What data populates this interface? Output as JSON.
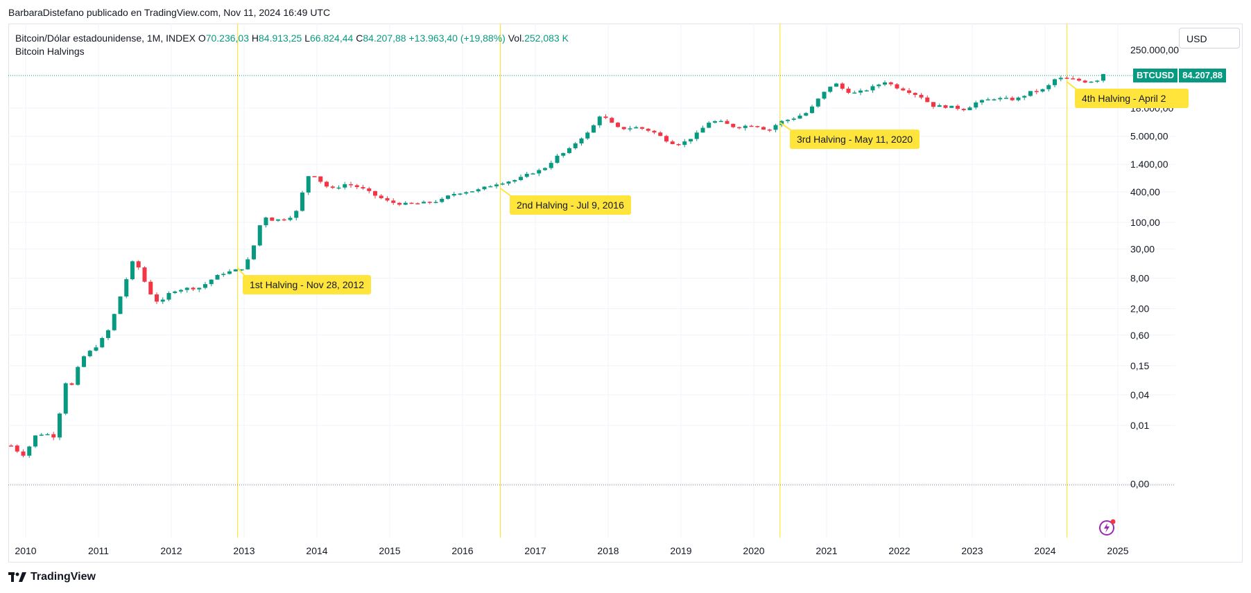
{
  "attribution": "BarbaraDistefano publicado en TradingView.com, Nov 11, 2024 16:49 UTC",
  "legend": {
    "symbol_desc": "Bitcoin/Dólar estadounidense, 1M, INDEX",
    "o_key": "O",
    "o_val": "70.236,03",
    "h_key": "H",
    "h_val": "84.913,25",
    "l_key": "L",
    "l_val": "66.824,44",
    "c_key": "C",
    "c_val": "84.207,88",
    "change": "+13.963,40 (+19,88%)",
    "vol_key": "Vol.",
    "vol_val": "252,083 K",
    "indicator": "Bitcoin Halvings"
  },
  "currency": "USD",
  "ticker": {
    "symbol": "BTCUSD",
    "price": "84.207,88"
  },
  "footer_brand": "TradingView",
  "icons": {
    "brand": "tradingview-logo-icon",
    "flash": "lightning-icon"
  },
  "colors": {
    "up": "#089981",
    "down": "#f23645",
    "halving": "#ffe53b",
    "grid": "#f0f3fa",
    "axis": "#131722"
  },
  "chart_data": {
    "type": "candlestick",
    "title": "",
    "y_scale": "log",
    "y_ticks": [
      "0,00",
      "0,01",
      "0,04",
      "0,15",
      "0,60",
      "2,00",
      "8,00",
      "30,00",
      "100,00",
      "400,00",
      "1.400,00",
      "5.000,00",
      "18.000,00"
    ],
    "y_tick_values": [
      0.0007,
      0.01,
      0.04,
      0.15,
      0.6,
      2,
      8,
      30,
      100,
      400,
      1400,
      5000,
      18000
    ],
    "x_ticks": [
      "2010",
      "2011",
      "2012",
      "2013",
      "2014",
      "2015",
      "2016",
      "2017",
      "2018",
      "2019",
      "2020",
      "2021",
      "2022",
      "2023",
      "2024",
      "2025"
    ],
    "x_range": [
      2009.78,
      2025.79
    ],
    "last_price": 84207.88,
    "low_line": 0.0025,
    "halvings": [
      {
        "date": 2012.91,
        "label": "1st Halving - Nov 28, 2012"
      },
      {
        "date": 2016.52,
        "label": "2nd Halving - Jul 9, 2016"
      },
      {
        "date": 2020.36,
        "label": "3rd Halving - May 11, 2020"
      },
      {
        "date": 2024.3,
        "label": "4th Halving - April 2"
      }
    ],
    "close_anchors": [
      [
        2009.8,
        0.004
      ],
      [
        2009.9,
        0.003
      ],
      [
        2010.0,
        0.0025
      ],
      [
        2010.1,
        0.006
      ],
      [
        2010.25,
        0.007
      ],
      [
        2010.4,
        0.006
      ],
      [
        2010.55,
        0.07
      ],
      [
        2010.65,
        0.06
      ],
      [
        2010.75,
        0.2
      ],
      [
        2010.9,
        0.3
      ],
      [
        2011.0,
        0.4
      ],
      [
        2011.15,
        0.8
      ],
      [
        2011.3,
        3.5
      ],
      [
        2011.4,
        9
      ],
      [
        2011.45,
        17
      ],
      [
        2011.55,
        13
      ],
      [
        2011.65,
        6
      ],
      [
        2011.75,
        3.2
      ],
      [
        2011.85,
        2.5
      ],
      [
        2012.0,
        4.5
      ],
      [
        2012.2,
        5
      ],
      [
        2012.4,
        5.2
      ],
      [
        2012.55,
        7.5
      ],
      [
        2012.7,
        10
      ],
      [
        2012.85,
        11
      ],
      [
        2013.0,
        13
      ],
      [
        2013.1,
        25
      ],
      [
        2013.2,
        70
      ],
      [
        2013.25,
        140
      ],
      [
        2013.4,
        110
      ],
      [
        2013.6,
        120
      ],
      [
        2013.75,
        180
      ],
      [
        2013.85,
        800
      ],
      [
        2013.95,
        900
      ],
      [
        2014.1,
        550
      ],
      [
        2014.2,
        450
      ],
      [
        2014.4,
        580
      ],
      [
        2014.6,
        480
      ],
      [
        2014.8,
        340
      ],
      [
        2015.0,
        250
      ],
      [
        2015.2,
        230
      ],
      [
        2015.45,
        240
      ],
      [
        2015.7,
        270
      ],
      [
        2015.85,
        360
      ],
      [
        2016.0,
        400
      ],
      [
        2016.2,
        430
      ],
      [
        2016.45,
        580
      ],
      [
        2016.55,
        620
      ],
      [
        2016.75,
        700
      ],
      [
        2016.95,
        960
      ],
      [
        2017.1,
        1100
      ],
      [
        2017.3,
        2000
      ],
      [
        2017.45,
        2600
      ],
      [
        2017.6,
        4400
      ],
      [
        2017.75,
        6200
      ],
      [
        2017.9,
        14000
      ],
      [
        2018.0,
        10000
      ],
      [
        2018.15,
        7000
      ],
      [
        2018.4,
        7500
      ],
      [
        2018.6,
        6300
      ],
      [
        2018.85,
        3800
      ],
      [
        2019.0,
        3500
      ],
      [
        2019.2,
        5300
      ],
      [
        2019.4,
        10000
      ],
      [
        2019.55,
        9500
      ],
      [
        2019.75,
        7500
      ],
      [
        2020.0,
        8500
      ],
      [
        2020.2,
        6500
      ],
      [
        2020.35,
        9500
      ],
      [
        2020.55,
        11500
      ],
      [
        2020.75,
        15000
      ],
      [
        2020.9,
        29000
      ],
      [
        2021.1,
        58000
      ],
      [
        2021.25,
        40000
      ],
      [
        2021.4,
        35000
      ],
      [
        2021.6,
        44000
      ],
      [
        2021.8,
        60000
      ],
      [
        2021.95,
        47000
      ],
      [
        2022.1,
        40000
      ],
      [
        2022.3,
        30000
      ],
      [
        2022.45,
        20000
      ],
      [
        2022.7,
        19000
      ],
      [
        2022.9,
        17000
      ],
      [
        2023.05,
        23000
      ],
      [
        2023.3,
        28000
      ],
      [
        2023.6,
        26500
      ],
      [
        2023.8,
        37000
      ],
      [
        2024.0,
        42000
      ],
      [
        2024.15,
        70000
      ],
      [
        2024.35,
        67000
      ],
      [
        2024.55,
        60000
      ],
      [
        2024.7,
        63000
      ],
      [
        2024.85,
        84207.88
      ]
    ]
  }
}
